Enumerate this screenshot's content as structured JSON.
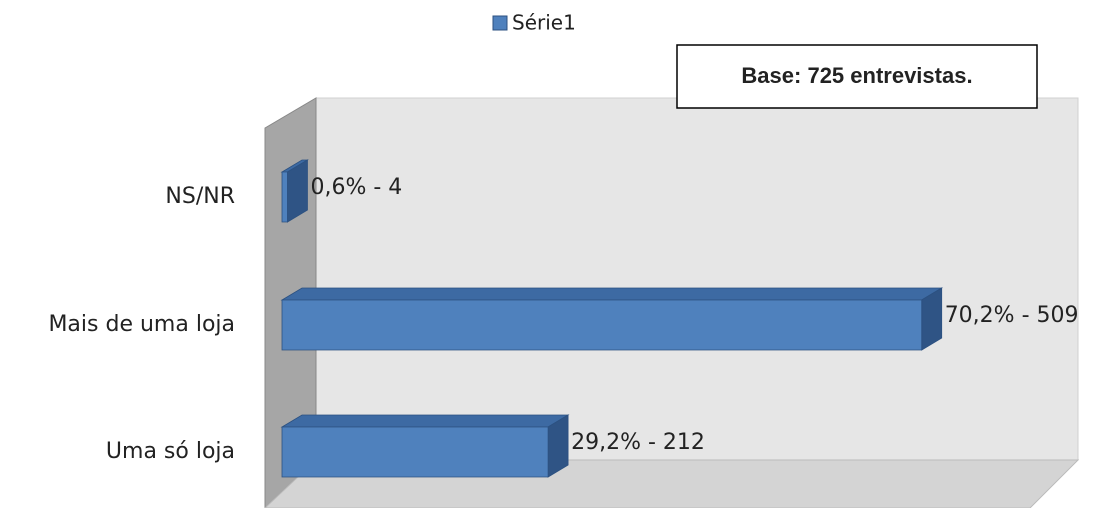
{
  "chart_data": {
    "type": "bar3d_horizontal",
    "categories": [
      "NS/NR",
      "Mais de uma loja",
      "Uma só loja"
    ],
    "series": [
      {
        "name": "Série1",
        "color": "#4f81bd",
        "values": [
          0.6,
          70.2,
          29.2
        ],
        "value_labels": [
          "0,6% - 4",
          "70,2% - 509",
          "29,2% - 212"
        ]
      }
    ],
    "annotation": "Base: 725 entrevistas.",
    "xlim": [
      0,
      80
    ]
  }
}
